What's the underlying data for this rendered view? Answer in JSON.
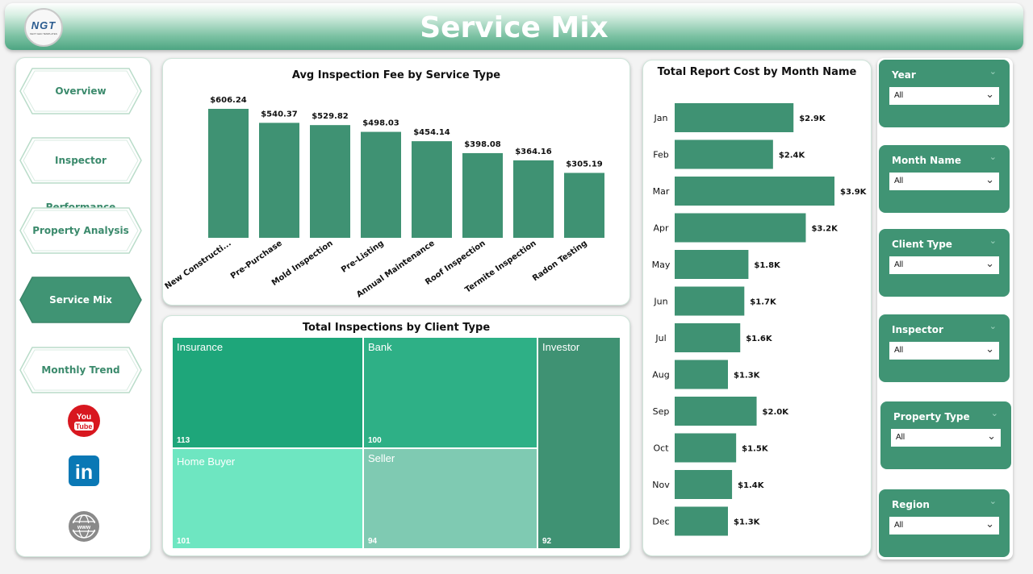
{
  "header": {
    "title": "Service Mix",
    "logo_text": "NGT",
    "logo_subtext": "NEXT GEN TEMPLATES"
  },
  "nav": {
    "items": [
      {
        "label": "Overview",
        "active": false
      },
      {
        "label": "Inspector Performance",
        "active": false
      },
      {
        "label": "Property Analysis",
        "active": false
      },
      {
        "label": "Service Mix",
        "active": true
      },
      {
        "label": "Monthly Trend",
        "active": false
      }
    ],
    "social": {
      "youtube": {
        "line1": "You",
        "line2": "Tube"
      },
      "linkedin": "in",
      "web": "www"
    }
  },
  "chart_fee": {
    "title": "Avg Inspection Fee by Service Type",
    "chart_data": {
      "type": "bar",
      "categories": [
        "New Constructi...",
        "Pre-Purchase",
        "Mold Inspection",
        "Pre-Listing",
        "Annual Maintenance",
        "Roof Inspection",
        "Termite Inspection",
        "Radon Testing"
      ],
      "values": [
        606.24,
        540.37,
        529.82,
        498.03,
        454.14,
        398.08,
        364.16,
        305.19
      ],
      "labels": [
        "$606.24",
        "$540.37",
        "$529.82",
        "$498.03",
        "$454.14",
        "$398.08",
        "$364.16",
        "$305.19"
      ],
      "ylim": [
        0,
        606.24
      ]
    }
  },
  "chart_treemap": {
    "title": "Total Inspections by Client Type",
    "chart_data": {
      "type": "treemap",
      "items": [
        {
          "name": "Insurance",
          "value": 113
        },
        {
          "name": "Bank",
          "value": 100
        },
        {
          "name": "Investor",
          "value": 92
        },
        {
          "name": "Home Buyer",
          "value": 101
        },
        {
          "name": "Seller",
          "value": 94
        }
      ]
    }
  },
  "chart_month": {
    "title": "Total Report Cost by Month Name",
    "chart_data": {
      "type": "bar",
      "orientation": "horizontal",
      "categories": [
        "Jan",
        "Feb",
        "Mar",
        "Apr",
        "May",
        "Jun",
        "Jul",
        "Aug",
        "Sep",
        "Oct",
        "Nov",
        "Dec"
      ],
      "values": [
        2900,
        2400,
        3900,
        3200,
        1800,
        1700,
        1600,
        1300,
        2000,
        1500,
        1400,
        1300
      ],
      "labels": [
        "$2.9K",
        "$2.4K",
        "$3.9K",
        "$3.2K",
        "$1.8K",
        "$1.7K",
        "$1.6K",
        "$1.3K",
        "$2.0K",
        "$1.5K",
        "$1.4K",
        "$1.3K"
      ],
      "xlim": [
        0,
        3900
      ]
    }
  },
  "filters": [
    {
      "title": "Year",
      "value": "All"
    },
    {
      "title": "Month Name",
      "value": "All"
    },
    {
      "title": "Client Type",
      "value": "All"
    },
    {
      "title": "Inspector",
      "value": "All"
    },
    {
      "title": "Property Type",
      "value": "All"
    },
    {
      "title": "Region",
      "value": "All"
    }
  ],
  "colors": {
    "bar": "#3f9273",
    "accent": "#409474",
    "insurance": "#1ea67a",
    "bank": "#2eb086",
    "investor": "#3f9273",
    "home_buyer": "#6ee6c1",
    "seller": "#7fcab2"
  }
}
